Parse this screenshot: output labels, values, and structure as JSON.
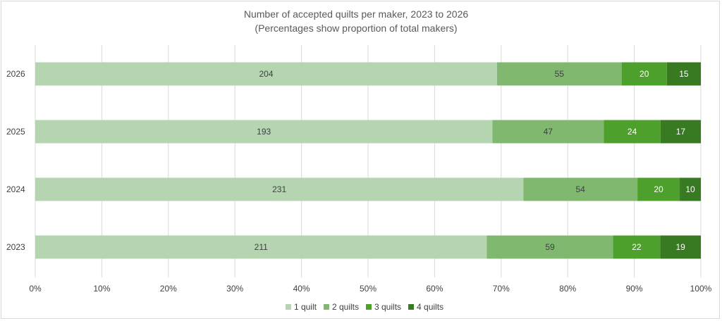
{
  "chart_data": {
    "type": "bar",
    "orientation": "horizontal",
    "stacking": "percent",
    "title": "Number of accepted quilts per maker, 2023 to 2026",
    "subtitle": "(Percentages show proportion of total makers)",
    "categories": [
      "2026",
      "2025",
      "2024",
      "2023"
    ],
    "series": [
      {
        "name": "1 quilt",
        "color": "#b5d5b1",
        "label_color": "#404040",
        "values": [
          204,
          193,
          231,
          211
        ]
      },
      {
        "name": "2 quilts",
        "color": "#80b870",
        "label_color": "#404040",
        "values": [
          55,
          47,
          54,
          59
        ]
      },
      {
        "name": "3 quilts",
        "color": "#4ea02c",
        "label_color": "#ffffff",
        "values": [
          20,
          24,
          20,
          22
        ]
      },
      {
        "name": "4 quilts",
        "color": "#387a22",
        "label_color": "#ffffff",
        "values": [
          15,
          17,
          10,
          19
        ]
      }
    ],
    "x_ticks": [
      "0%",
      "10%",
      "20%",
      "30%",
      "40%",
      "50%",
      "60%",
      "70%",
      "80%",
      "90%",
      "100%"
    ],
    "xlim": [
      0,
      100
    ],
    "grid": true,
    "legend": "bottom"
  }
}
